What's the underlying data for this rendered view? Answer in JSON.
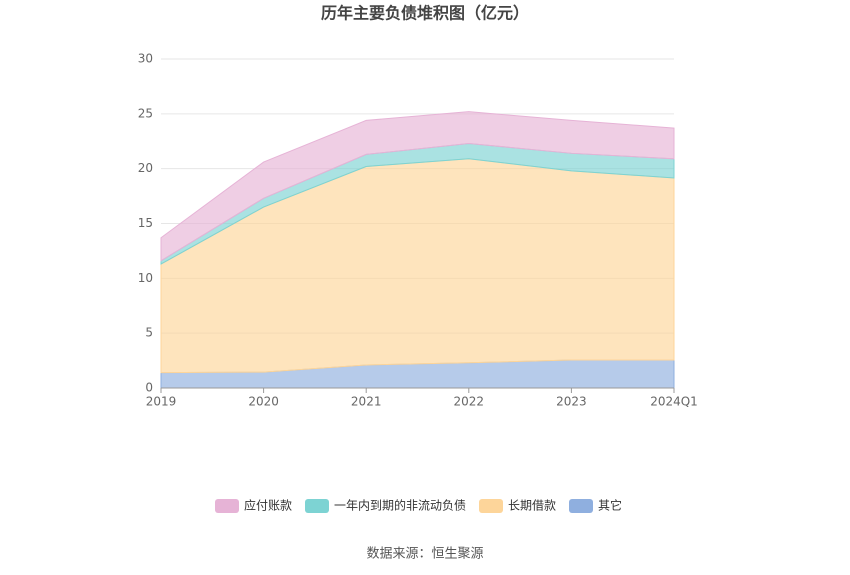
{
  "chart_data": {
    "type": "stacked-area",
    "title": "历年主要负债堆积图（亿元）",
    "categories": [
      "2019",
      "2020",
      "2021",
      "2022",
      "2023",
      "2024Q1"
    ],
    "series": [
      {
        "name": "应付账款",
        "color": "#e6b3d6",
        "values": [
          2.1,
          3.3,
          3.1,
          2.9,
          3.0,
          2.8
        ]
      },
      {
        "name": "一年内到期的非流动负债",
        "color": "#7dd3d3",
        "values": [
          0.3,
          0.8,
          1.1,
          1.4,
          1.6,
          1.75
        ]
      },
      {
        "name": "长期借款",
        "color": "#fdd59a",
        "values": [
          9.9,
          15.05,
          18.1,
          18.6,
          17.25,
          16.6
        ]
      },
      {
        "name": "其它",
        "color": "#8fafdf",
        "values": [
          1.4,
          1.45,
          2.1,
          2.3,
          2.55,
          2.55
        ]
      }
    ],
    "ylim": [
      0,
      30
    ],
    "yticks": [
      0,
      5,
      10,
      15,
      20,
      25,
      30
    ],
    "grid": true,
    "legend": "bottom",
    "source": "数据来源：恒生聚源"
  }
}
